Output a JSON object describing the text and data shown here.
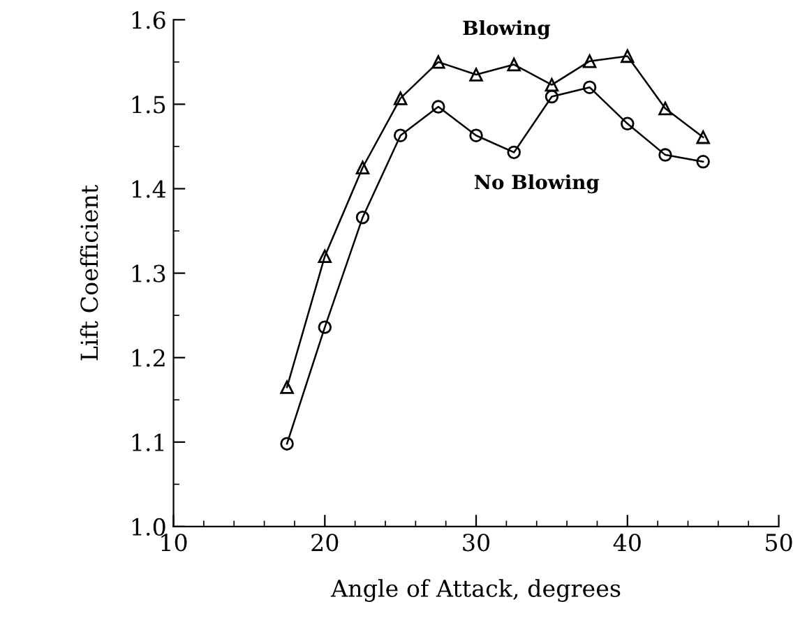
{
  "chart_data": {
    "type": "line",
    "xlabel": "Angle of Attack, degrees",
    "ylabel": "Lift Coefficient",
    "x": [
      17.5,
      20,
      22.5,
      25,
      27.5,
      30,
      32.5,
      35,
      37.5,
      40,
      42.5,
      45
    ],
    "series": [
      {
        "name": "Blowing",
        "color": "#000000",
        "marker": "triangle",
        "values": [
          1.165,
          1.32,
          1.425,
          1.507,
          1.55,
          1.535,
          1.547,
          1.523,
          1.551,
          1.557,
          1.495,
          1.461
        ]
      },
      {
        "name": "No Blowing",
        "color": "#000000",
        "marker": "circle",
        "values": [
          1.098,
          1.236,
          1.366,
          1.463,
          1.497,
          1.463,
          1.443,
          1.509,
          1.52,
          1.477,
          1.44,
          1.432
        ]
      }
    ],
    "xlim": [
      10,
      50
    ],
    "xticks": [
      10,
      20,
      30,
      40,
      50
    ],
    "ylim": [
      1.0,
      1.6
    ],
    "yticks": [
      {
        "value": 1.0,
        "label": "1.0"
      },
      1.1,
      1.2,
      1.3,
      1.4,
      1.5,
      1.6
    ],
    "grid": false,
    "legend": false,
    "line_style": "solid"
  }
}
